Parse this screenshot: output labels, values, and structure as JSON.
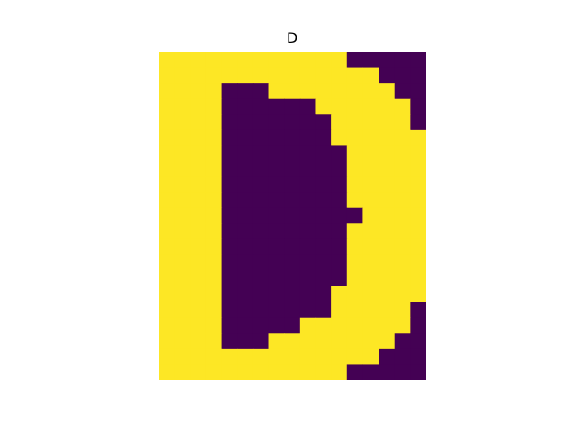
{
  "chart_data": {
    "type": "heatmap",
    "title": "D",
    "xlabel": "",
    "ylabel": "",
    "axes_visible": false,
    "grid": false,
    "colormap": {
      "0": "#440154",
      "1": "#fde725"
    },
    "rows": 21,
    "cols": 17,
    "values": [
      [
        1,
        1,
        1,
        1,
        1,
        1,
        1,
        1,
        1,
        1,
        1,
        1,
        0,
        0,
        0,
        0,
        0
      ],
      [
        1,
        1,
        1,
        1,
        1,
        1,
        1,
        1,
        1,
        1,
        1,
        1,
        1,
        1,
        0,
        0,
        0
      ],
      [
        1,
        1,
        1,
        1,
        0,
        0,
        0,
        1,
        1,
        1,
        1,
        1,
        1,
        1,
        1,
        0,
        0
      ],
      [
        1,
        1,
        1,
        1,
        0,
        0,
        0,
        0,
        0,
        0,
        1,
        1,
        1,
        1,
        1,
        1,
        0
      ],
      [
        1,
        1,
        1,
        1,
        0,
        0,
        0,
        0,
        0,
        0,
        0,
        1,
        1,
        1,
        1,
        1,
        0
      ],
      [
        1,
        1,
        1,
        1,
        0,
        0,
        0,
        0,
        0,
        0,
        0,
        1,
        1,
        1,
        1,
        1,
        1
      ],
      [
        1,
        1,
        1,
        1,
        0,
        0,
        0,
        0,
        0,
        0,
        0,
        0,
        1,
        1,
        1,
        1,
        1
      ],
      [
        1,
        1,
        1,
        1,
        0,
        0,
        0,
        0,
        0,
        0,
        0,
        0,
        1,
        1,
        1,
        1,
        1
      ],
      [
        1,
        1,
        1,
        1,
        0,
        0,
        0,
        0,
        0,
        0,
        0,
        0,
        1,
        1,
        1,
        1,
        1
      ],
      [
        1,
        1,
        1,
        1,
        0,
        0,
        0,
        0,
        0,
        0,
        0,
        0,
        1,
        1,
        1,
        1,
        1
      ],
      [
        1,
        1,
        1,
        1,
        0,
        0,
        0,
        0,
        0,
        0,
        0,
        0,
        0,
        1,
        1,
        1,
        1
      ],
      [
        1,
        1,
        1,
        1,
        0,
        0,
        0,
        0,
        0,
        0,
        0,
        0,
        1,
        1,
        1,
        1,
        1
      ],
      [
        1,
        1,
        1,
        1,
        0,
        0,
        0,
        0,
        0,
        0,
        0,
        0,
        1,
        1,
        1,
        1,
        1
      ],
      [
        1,
        1,
        1,
        1,
        0,
        0,
        0,
        0,
        0,
        0,
        0,
        0,
        1,
        1,
        1,
        1,
        1
      ],
      [
        1,
        1,
        1,
        1,
        0,
        0,
        0,
        0,
        0,
        0,
        0,
        0,
        1,
        1,
        1,
        1,
        1
      ],
      [
        1,
        1,
        1,
        1,
        0,
        0,
        0,
        0,
        0,
        0,
        0,
        1,
        1,
        1,
        1,
        1,
        1
      ],
      [
        1,
        1,
        1,
        1,
        0,
        0,
        0,
        0,
        0,
        0,
        0,
        1,
        1,
        1,
        1,
        1,
        0
      ],
      [
        1,
        1,
        1,
        1,
        0,
        0,
        0,
        0,
        0,
        1,
        1,
        1,
        1,
        1,
        1,
        1,
        0
      ],
      [
        1,
        1,
        1,
        1,
        0,
        0,
        0,
        1,
        1,
        1,
        1,
        1,
        1,
        1,
        1,
        0,
        0
      ],
      [
        1,
        1,
        1,
        1,
        1,
        1,
        1,
        1,
        1,
        1,
        1,
        1,
        1,
        1,
        0,
        0,
        0
      ],
      [
        1,
        1,
        1,
        1,
        1,
        1,
        1,
        1,
        1,
        1,
        1,
        1,
        0,
        0,
        0,
        0,
        0
      ]
    ]
  }
}
